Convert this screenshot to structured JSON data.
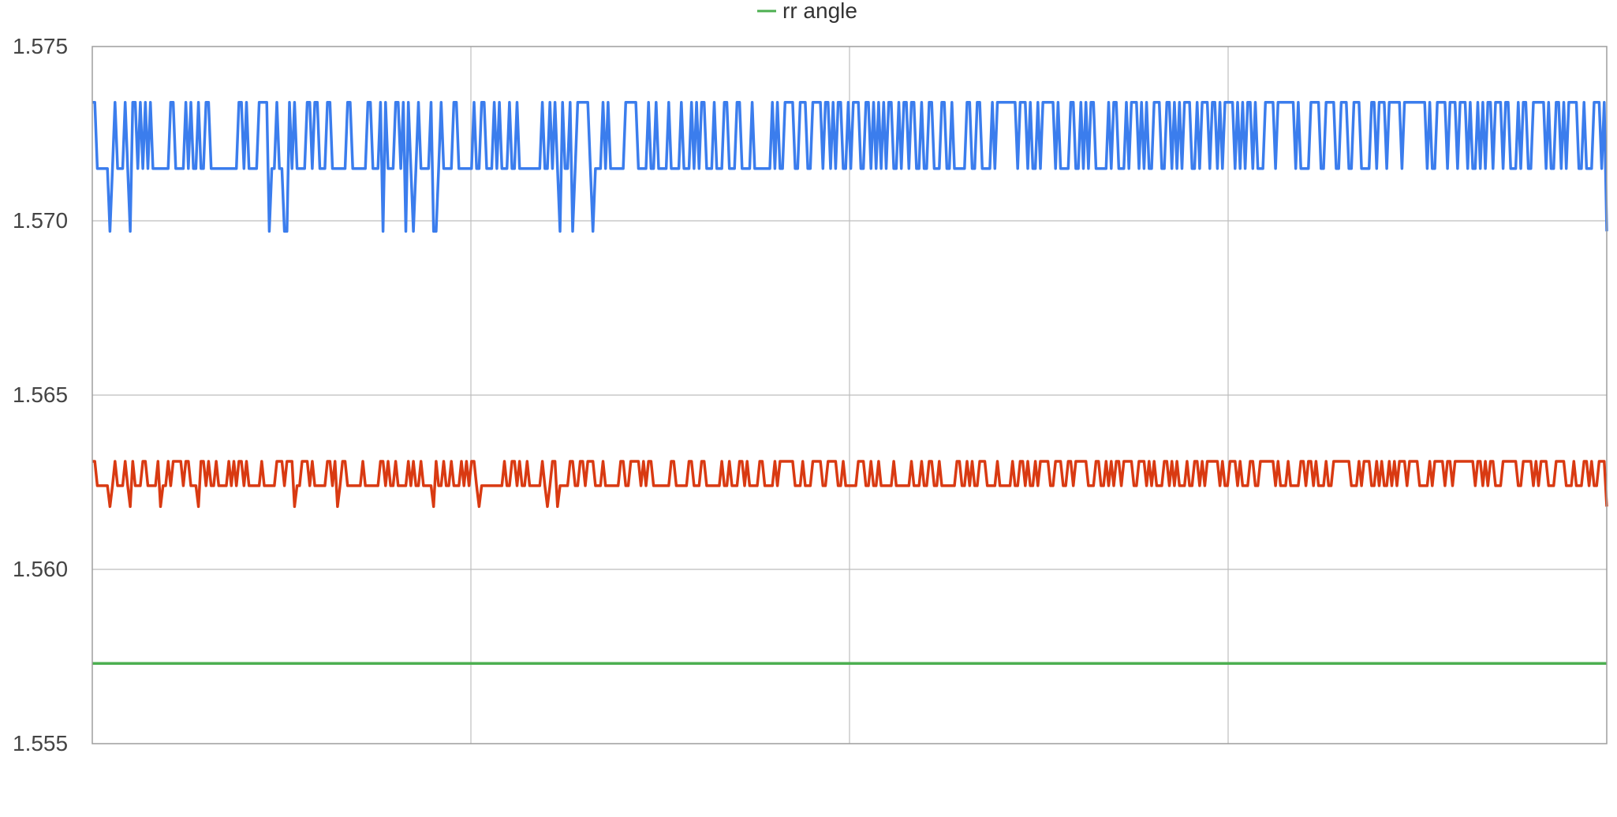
{
  "chart_data": {
    "type": "line",
    "title": "",
    "xlabel": "",
    "ylabel": "",
    "ylim": [
      1.555,
      1.575
    ],
    "y_ticks": [
      "1.575",
      "1.570",
      "1.565",
      "1.560",
      "1.555"
    ],
    "x_ticks": [],
    "grid": true,
    "legend_position": "top-center",
    "legend": [
      "rr angle"
    ],
    "series": [
      {
        "color": "#3b7ded",
        "base": 1.5715,
        "high": 1.5734,
        "low": 1.5697,
        "n_points": 600,
        "sample_values": [
          1.5734,
          1.5734,
          1.5715,
          1.5715,
          1.5715,
          1.5715,
          1.5715,
          1.5697,
          1.5715,
          1.5734,
          1.5715,
          1.5715,
          1.5715,
          1.5734,
          1.5715,
          1.5697
        ]
      },
      {
        "color": "#d93a12",
        "base": 1.5624,
        "high": 1.5631,
        "low": 1.5618,
        "n_points": 600,
        "sample_values": [
          1.5631,
          1.5631,
          1.5624,
          1.5624,
          1.5624,
          1.5624,
          1.5624,
          1.5618,
          1.5624,
          1.5631,
          1.5624,
          1.5624,
          1.5624,
          1.5631,
          1.5624,
          1.5618
        ]
      },
      {
        "name": "rr angle",
        "color": "#4caf50",
        "values_piecewise": [
          {
            "x_from": 0.0,
            "x_to": 0.83,
            "y": 1.5573
          },
          {
            "x_from": 0.83,
            "x_to": 1.0,
            "y": 1.5573
          }
        ]
      }
    ]
  }
}
